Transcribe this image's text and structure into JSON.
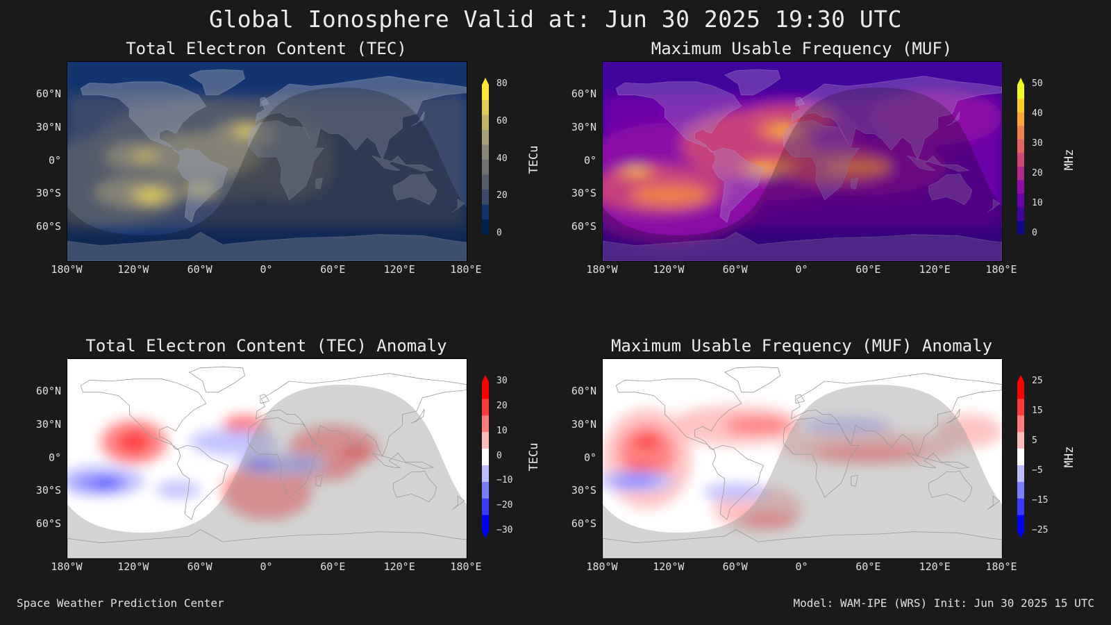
{
  "title": "Global Ionosphere Valid at: Jun 30 2025 19:30 UTC",
  "footer": {
    "left": "Space Weather Prediction Center",
    "right": "Model: WAM-IPE (WRS) Init: Jun 30 2025 15 UTC"
  },
  "axes": {
    "lat_labels": [
      "60°N",
      "30°N",
      "0°",
      "30°S",
      "60°S"
    ],
    "lon_labels": [
      "180°W",
      "120°W",
      "60°W",
      "0°",
      "60°E",
      "120°E",
      "180°E"
    ]
  },
  "panels": {
    "tec": {
      "title": "Total Electron Content (TEC)",
      "colorbar_label": "TECu",
      "colorbar_ticks": [
        "80",
        "60",
        "40",
        "20",
        "0"
      ],
      "colormap": [
        "#00224e",
        "#123570",
        "#3b496c",
        "#575d6d",
        "#707173",
        "#8a8678",
        "#a69d75",
        "#c3b369",
        "#e1cc55",
        "#fee838"
      ],
      "value_range": [
        0,
        80
      ]
    },
    "muf": {
      "title": "Maximum Usable Frequency (MUF)",
      "colorbar_label": "MHz",
      "colorbar_ticks": [
        "50",
        "40",
        "30",
        "20",
        "10",
        "0"
      ],
      "colormap": [
        "#0d0887",
        "#41049d",
        "#6a00a8",
        "#8f0da4",
        "#b12a90",
        "#cc4778",
        "#e16462",
        "#f2844b",
        "#fca636",
        "#fcce25",
        "#f0f921"
      ],
      "value_range": [
        0,
        50
      ]
    },
    "tec_anomaly": {
      "title": "Total Electron Content (TEC) Anomaly",
      "colorbar_label": "TECu",
      "colorbar_ticks": [
        "30",
        "20",
        "10",
        "0",
        "−10",
        "−20",
        "−30"
      ],
      "colormap": [
        "#0000ff",
        "#3a3aff",
        "#7c7cff",
        "#bdbdff",
        "#ffffff",
        "#ffbdbd",
        "#ff7c7c",
        "#ff3a3a",
        "#ff0000"
      ],
      "value_range": [
        -30,
        30
      ]
    },
    "muf_anomaly": {
      "title": "Maximum Usable Frequency (MUF) Anomaly",
      "colorbar_label": "MHz",
      "colorbar_ticks": [
        "25",
        "15",
        "5",
        "−5",
        "−15",
        "−25"
      ],
      "colormap": [
        "#0000ff",
        "#3a3aff",
        "#7c7cff",
        "#bdbdff",
        "#ffffff",
        "#ffbdbd",
        "#ff7c7c",
        "#ff3a3a",
        "#ff0000"
      ],
      "value_range": [
        -25,
        25
      ]
    }
  }
}
